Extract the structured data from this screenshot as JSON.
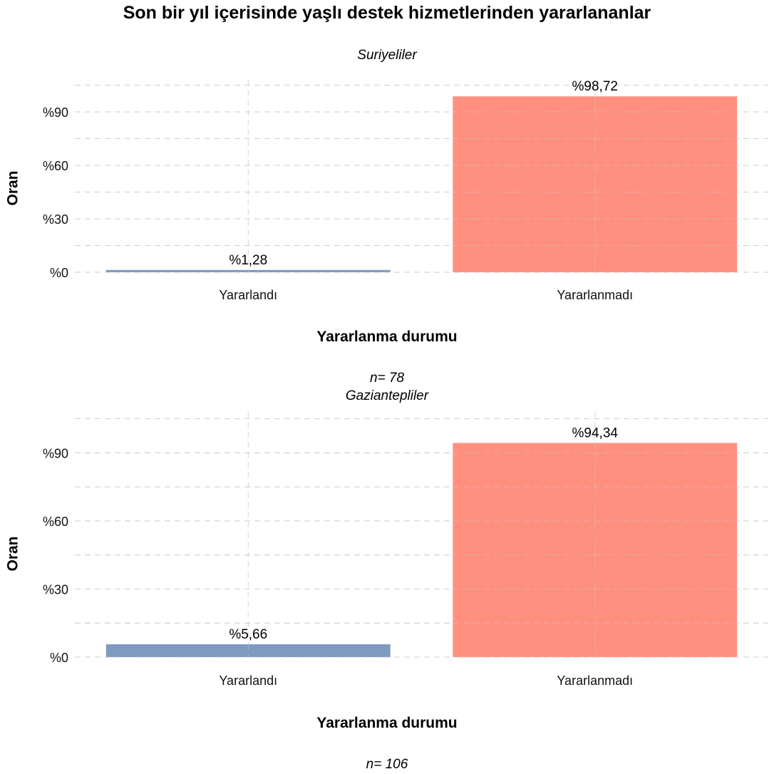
{
  "title": "Son bir yıl içerisinde yaşlı destek hizmetlerinden yararlananlar",
  "colors": {
    "yararlandi": "#7f9abf",
    "yararlanmadi": "#ff9080"
  },
  "chart_data": [
    {
      "type": "bar",
      "subtitle": "Suriyeliler",
      "categories": [
        "Yararlandı",
        "Yararlanmadı"
      ],
      "values": [
        1.28,
        98.72
      ],
      "value_labels": [
        "%1,28",
        "%98,72"
      ],
      "xlabel": "Yararlanma durumu",
      "ylabel": "Oran",
      "yticks": [
        0,
        30,
        60,
        90
      ],
      "ytick_labels": [
        "%0",
        "%30",
        "%60",
        "%90"
      ],
      "ylim": [
        0,
        108
      ],
      "caption": "n= 78",
      "grid": true,
      "legend": "none"
    },
    {
      "type": "bar",
      "subtitle": "Gaziantepliler",
      "categories": [
        "Yararlandı",
        "Yararlanmadı"
      ],
      "values": [
        5.66,
        94.34
      ],
      "value_labels": [
        "%5,66",
        "%94,34"
      ],
      "xlabel": "Yararlanma durumu",
      "ylabel": "Oran",
      "yticks": [
        0,
        30,
        60,
        90
      ],
      "ytick_labels": [
        "%0",
        "%30",
        "%60",
        "%90"
      ],
      "ylim": [
        0,
        108
      ],
      "caption": "n= 106",
      "grid": true,
      "legend": "none"
    }
  ]
}
